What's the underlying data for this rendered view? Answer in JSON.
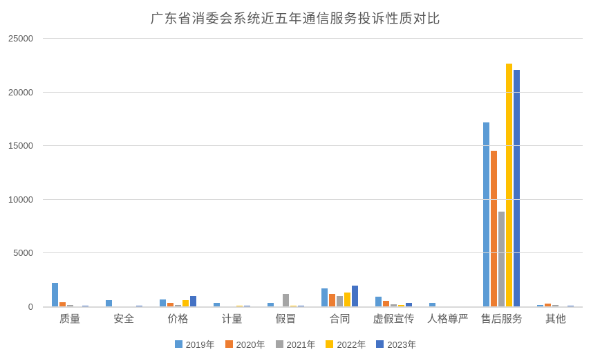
{
  "chart_data": {
    "type": "bar",
    "title": "广东省消委会系统近五年通信服务投诉性质对比",
    "categories": [
      "质量",
      "安全",
      "价格",
      "计量",
      "假冒",
      "合同",
      "虚假宣传",
      "人格尊严",
      "售后服务",
      "其他"
    ],
    "series": [
      {
        "name": "2019年",
        "color": "#5B9BD5",
        "values": [
          2250,
          620,
          710,
          410,
          400,
          1720,
          950,
          410,
          17200,
          190
        ]
      },
      {
        "name": "2020年",
        "color": "#ED7D31",
        "values": [
          430,
          75,
          410,
          20,
          80,
          1245,
          580,
          70,
          14550,
          320
        ]
      },
      {
        "name": "2021年",
        "color": "#A5A5A5",
        "values": [
          190,
          65,
          190,
          90,
          1240,
          1000,
          280,
          70,
          8900,
          190
        ]
      },
      {
        "name": "2022年",
        "color": "#FFC000",
        "values": [
          70,
          85,
          650,
          110,
          100,
          1370,
          175,
          70,
          22650,
          65
        ]
      },
      {
        "name": "2023年",
        "color": "#4472C4",
        "values": [
          130,
          110,
          1030,
          130,
          130,
          2000,
          370,
          80,
          22100,
          110
        ]
      }
    ],
    "xlabel": "",
    "ylabel": "",
    "ylim": [
      0,
      25000
    ],
    "ytick_interval": 5000,
    "yticks": [
      "0",
      "5000",
      "10000",
      "15000",
      "20000",
      "25000"
    ],
    "grid": true,
    "legend_position": "bottom",
    "colors": {
      "title_text": "#595959",
      "axis_text": "#595959",
      "gridline": "#D9D9D9",
      "background": "#FFFFFF"
    }
  }
}
